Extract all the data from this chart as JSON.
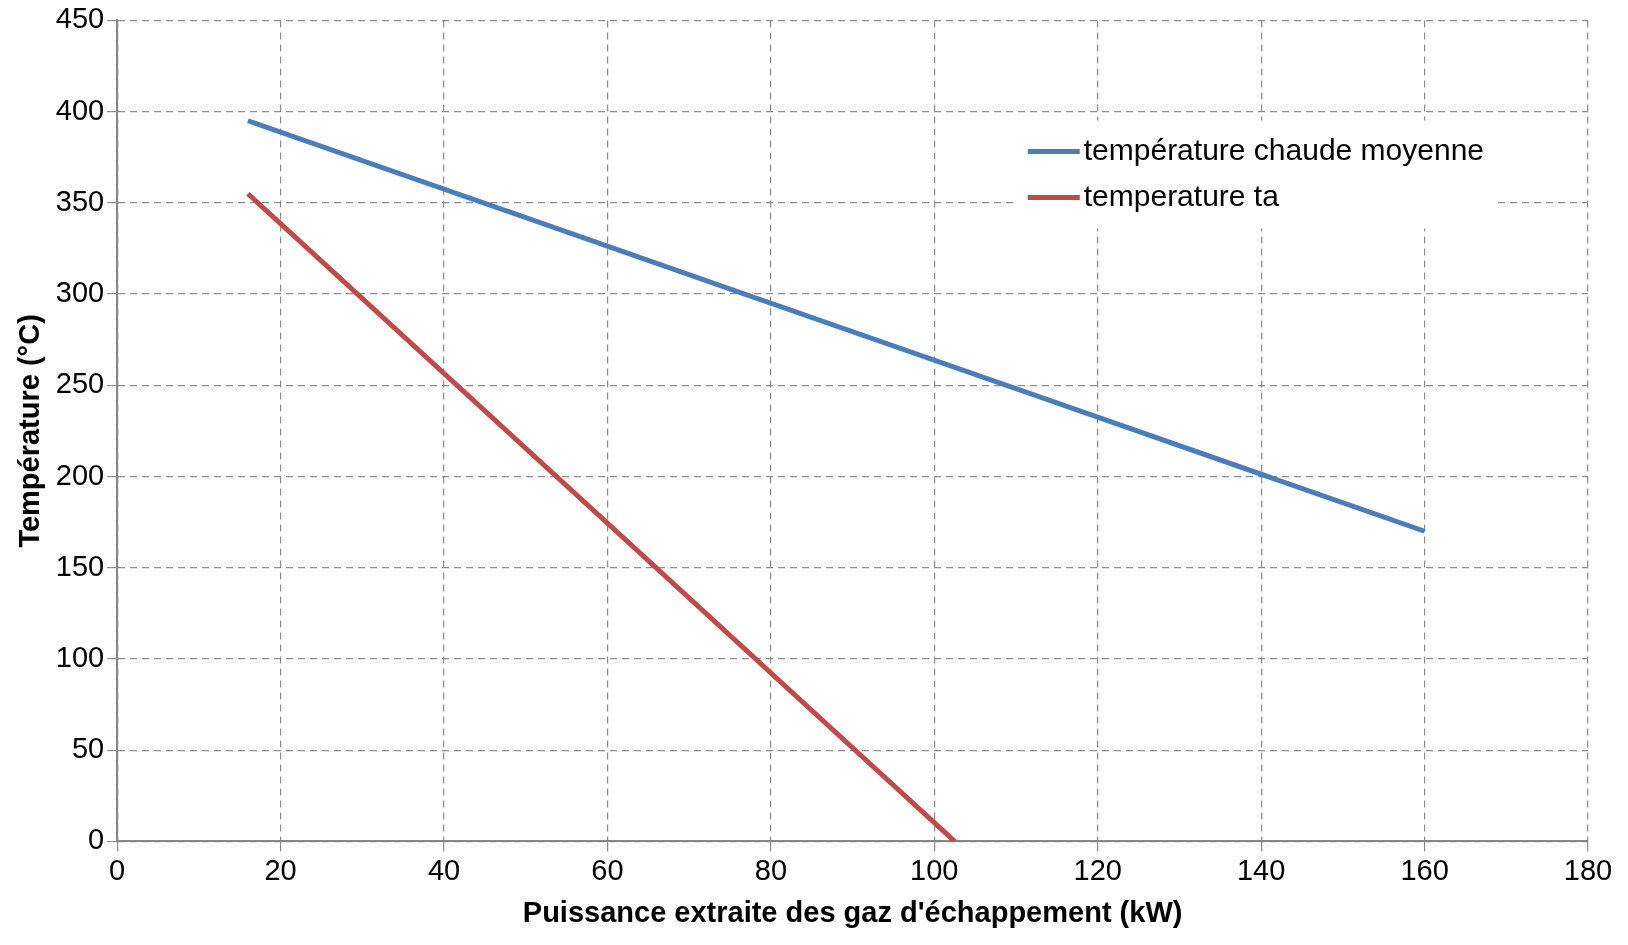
{
  "chart_data": {
    "type": "line",
    "xlabel": "Puissance extraite des gaz d'échappement (kW)",
    "ylabel": "Température (°C)",
    "xlim": [
      0,
      180
    ],
    "xticks": [
      0,
      20,
      40,
      60,
      80,
      100,
      120,
      140,
      160,
      180
    ],
    "ylim": [
      0,
      450
    ],
    "yticks": [
      0,
      50,
      100,
      150,
      200,
      250,
      300,
      350,
      400,
      450
    ],
    "series": [
      {
        "name": "température chaude moyenne",
        "color": "#4a7ebb",
        "x": [
          16,
          160
        ],
        "values": [
          395,
          170
        ]
      },
      {
        "name": "temperature ta",
        "color": "#be4b48",
        "x": [
          16,
          102.5
        ],
        "values": [
          355,
          0
        ]
      }
    ],
    "grid": true,
    "legend": "top right",
    "marker": "none",
    "line_style": "solid"
  }
}
